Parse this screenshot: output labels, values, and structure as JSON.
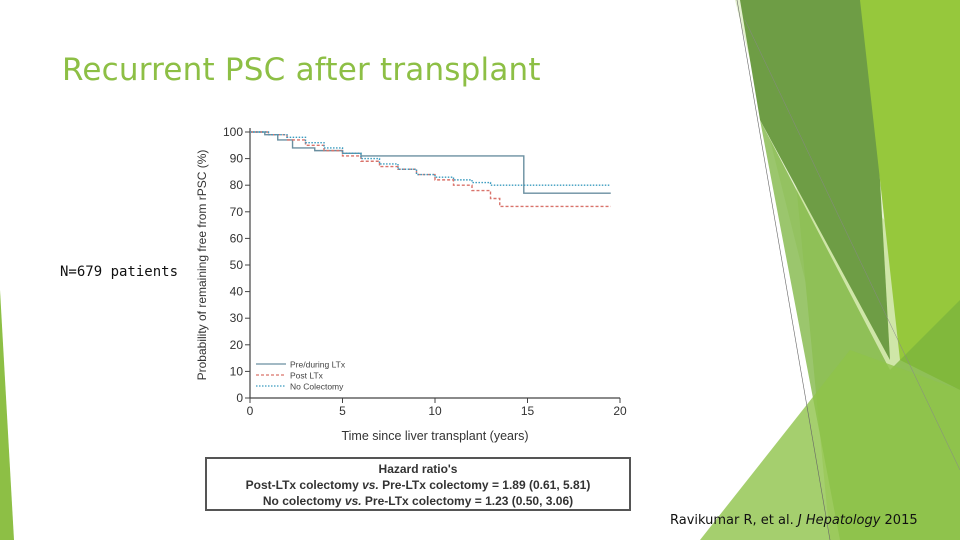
{
  "slide": {
    "title": "Recurrent PSC after transplant",
    "note": "N=679 patients",
    "citation": {
      "prefix": "Ravikumar R, et al. ",
      "journal": "J Hepatology",
      "suffix": " 2015"
    },
    "colors": {
      "accent": "#8dbf45",
      "dark_green": "#5a9a2e",
      "light_green": "#cfe6a8"
    }
  },
  "chart_data": {
    "type": "line",
    "title": "",
    "xlabel": "Time since liver transplant (years)",
    "ylabel": "Probability of remaining free from rPSC (%)",
    "xlim": [
      0,
      20
    ],
    "ylim": [
      0,
      100
    ],
    "xticks": [
      0,
      5,
      10,
      15,
      20
    ],
    "yticks": [
      0,
      10,
      20,
      30,
      40,
      50,
      60,
      70,
      80,
      90,
      100
    ],
    "legend_position": "bottom-left",
    "grid": false,
    "series": [
      {
        "name": "Pre/during LTx",
        "color": "#6a8fa0",
        "style": "solid",
        "points": [
          [
            0,
            100
          ],
          [
            0.8,
            99
          ],
          [
            1.5,
            97
          ],
          [
            2.3,
            94
          ],
          [
            3.5,
            93
          ],
          [
            5,
            92
          ],
          [
            6,
            91
          ],
          [
            14.8,
            91
          ],
          [
            14.8,
            77
          ],
          [
            19.5,
            77
          ]
        ]
      },
      {
        "name": "Post LTx",
        "color": "#d9736b",
        "style": "dashed",
        "points": [
          [
            0,
            100
          ],
          [
            1,
            99
          ],
          [
            2,
            97
          ],
          [
            3,
            95
          ],
          [
            4,
            93
          ],
          [
            5,
            91
          ],
          [
            6,
            89
          ],
          [
            7,
            87
          ],
          [
            8,
            86
          ],
          [
            9,
            84
          ],
          [
            10,
            82
          ],
          [
            11,
            80
          ],
          [
            12,
            78
          ],
          [
            13,
            75
          ],
          [
            13.5,
            72
          ],
          [
            19.5,
            72
          ]
        ]
      },
      {
        "name": "No Colectomy",
        "color": "#3a9bbf",
        "style": "dotted",
        "points": [
          [
            0,
            100
          ],
          [
            1,
            99
          ],
          [
            2,
            98
          ],
          [
            3,
            96
          ],
          [
            4,
            94
          ],
          [
            5,
            92
          ],
          [
            6,
            90
          ],
          [
            7,
            88
          ],
          [
            8,
            86
          ],
          [
            9,
            84
          ],
          [
            10,
            83
          ],
          [
            11,
            82
          ],
          [
            12,
            81
          ],
          [
            13,
            80
          ],
          [
            15,
            80
          ],
          [
            19.5,
            80
          ]
        ]
      }
    ]
  },
  "hazard_box": {
    "title": "Hazard ratio's",
    "line1_pre": "Post-LTx colectomy ",
    "line1_vs": "vs.",
    "line1_post": " Pre-LTx colectomy = 1.89 (0.61, 5.81)",
    "line2_pre": "No colectomy ",
    "line2_vs": "vs.",
    "line2_post": " Pre-LTx colectomy = 1.23 (0.50, 3.06)"
  }
}
